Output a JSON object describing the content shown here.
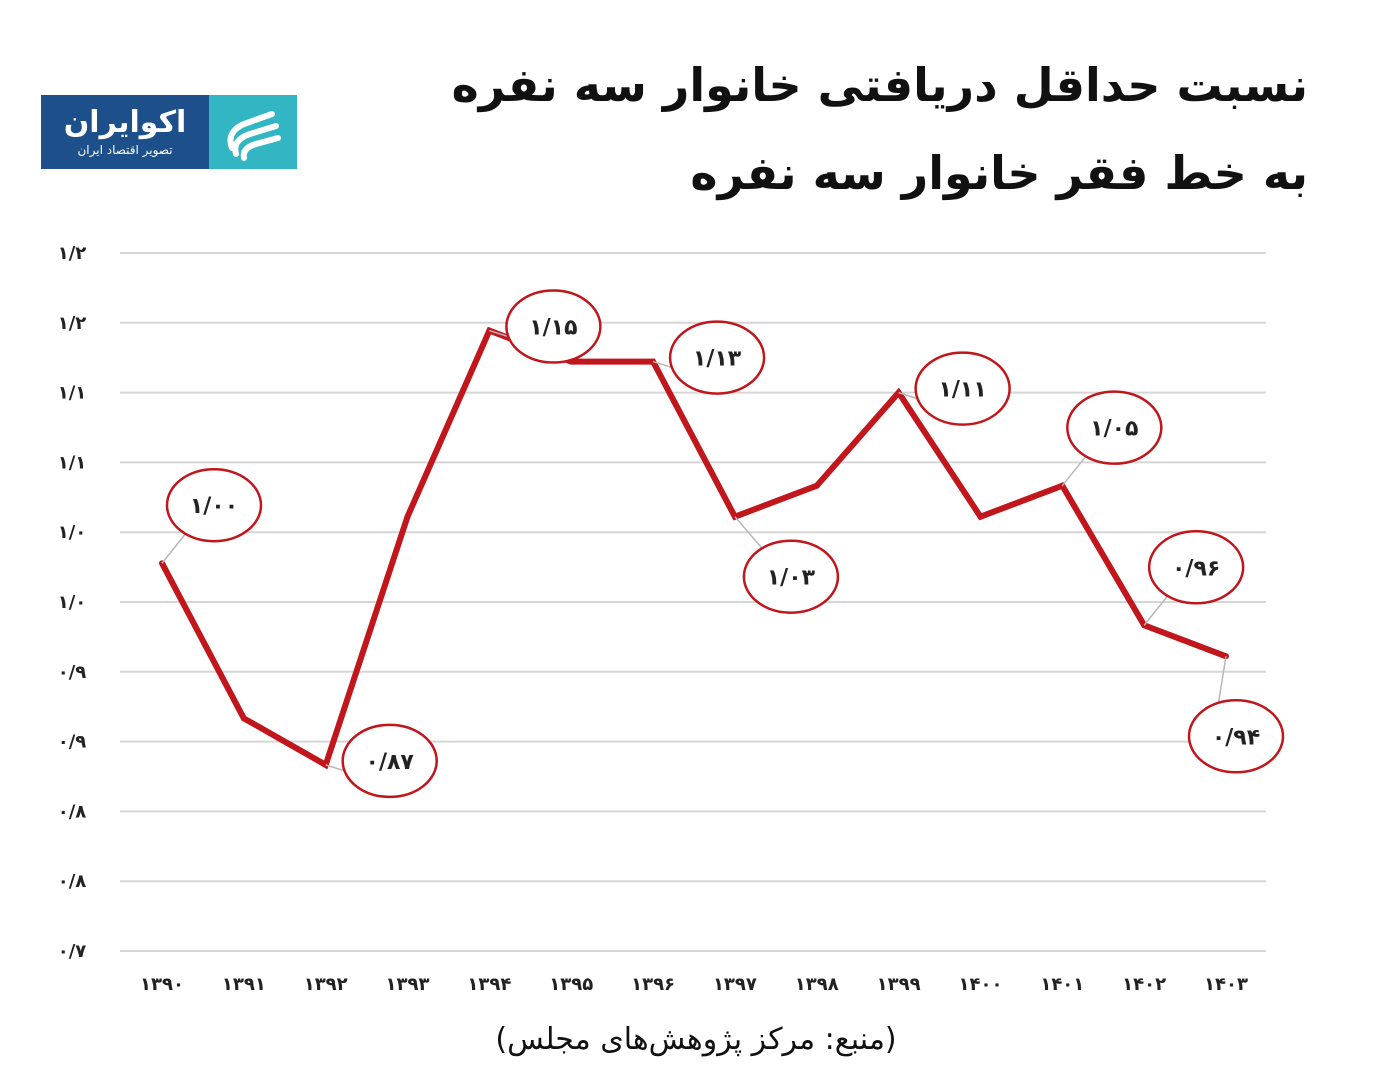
{
  "header": {
    "title_line1": "نسبت حداقل دریافتی خانوار سه نفره",
    "title_line2": "به خط فقر خانوار سه نفره"
  },
  "logo": {
    "name": "اکوایران",
    "tagline": "تصویر اقتصاد ایران",
    "icon": "ecoiran-logo-icon",
    "colors": {
      "text_panel": "#1d4f8a",
      "mark": "#33b6c4"
    }
  },
  "source": "(منبع: مرکز پژوهش‌های مجلس)",
  "chart_data": {
    "type": "line",
    "title": "نسبت حداقل دریافتی خانوار سه نفره به خط فقر خانوار سه نفره",
    "xlabel": "",
    "ylabel": "",
    "grid": true,
    "line_color": "#c0161c",
    "annotation_color": "#c0161c",
    "y_tick_labels": [
      "۱/۲",
      "۱/۲",
      "۱/۱",
      "۱/۱",
      "۱/۰",
      "۱/۰",
      "۰/۹",
      "۰/۹",
      "۰/۸",
      "۰/۸",
      "۰/۷"
    ],
    "ylim": [
      0.75,
      1.2
    ],
    "categories": [
      "۱۳۹۰",
      "۱۳۹۱",
      "۱۳۹۲",
      "۱۳۹۳",
      "۱۳۹۴",
      "۱۳۹۵",
      "۱۳۹۶",
      "۱۳۹۷",
      "۱۳۹۸",
      "۱۳۹۹",
      "۱۴۰۰",
      "۱۴۰۱",
      "۱۴۰۲",
      "۱۴۰۳"
    ],
    "values": [
      1.0,
      0.9,
      0.87,
      1.03,
      1.15,
      1.13,
      1.13,
      1.03,
      1.05,
      1.11,
      1.03,
      1.05,
      0.96,
      0.94
    ],
    "annotations": [
      {
        "index": 0,
        "label": "۱/۰۰",
        "position": "upper-right"
      },
      {
        "index": 2,
        "label": "۰/۸۷",
        "position": "right"
      },
      {
        "index": 4,
        "label": "۱/۱۵",
        "position": "right"
      },
      {
        "index": 6,
        "label": "۱/۱۳",
        "position": "right"
      },
      {
        "index": 7,
        "label": "۱/۰۳",
        "position": "lower-right"
      },
      {
        "index": 9,
        "label": "۱/۱۱",
        "position": "right"
      },
      {
        "index": 11,
        "label": "۱/۰۵",
        "position": "upper-right"
      },
      {
        "index": 12,
        "label": "۰/۹۶",
        "position": "upper-right"
      },
      {
        "index": 13,
        "label": "۰/۹۴",
        "position": "below"
      }
    ]
  }
}
